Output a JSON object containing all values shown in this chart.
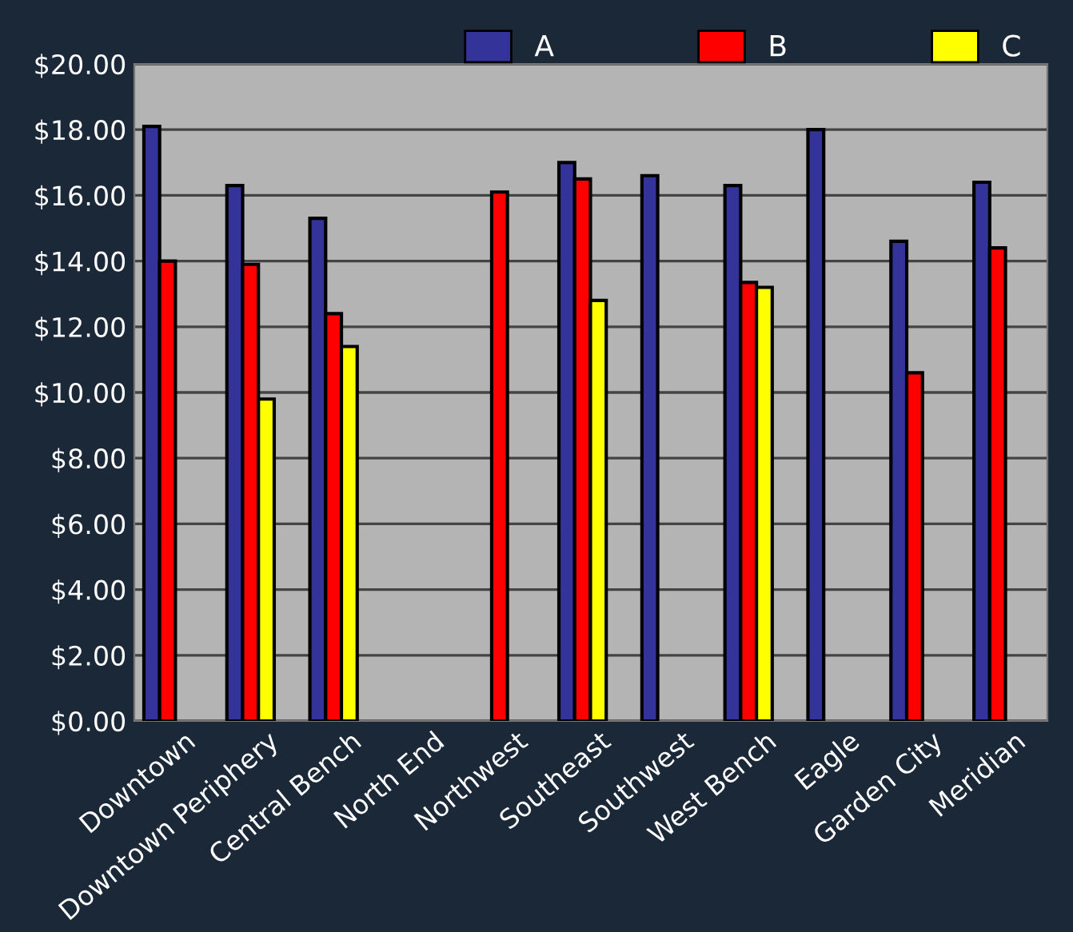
{
  "chart_data": {
    "type": "bar",
    "categories": [
      "Downtown",
      "Downtown Periphery",
      "Central Bench",
      "North End",
      "Northwest",
      "Southeast",
      "Southwest",
      "West Bench",
      "Eagle",
      "Garden City",
      "Meridian"
    ],
    "series": [
      {
        "name": "A",
        "color": "#333399",
        "values": [
          18.1,
          16.3,
          15.3,
          null,
          null,
          17.0,
          16.6,
          16.3,
          18.0,
          14.6,
          16.4
        ]
      },
      {
        "name": "B",
        "color": "#ff0000",
        "values": [
          14.0,
          13.9,
          12.4,
          null,
          16.1,
          16.5,
          null,
          13.35,
          null,
          10.6,
          14.4
        ]
      },
      {
        "name": "C",
        "color": "#ffff00",
        "values": [
          null,
          9.8,
          11.4,
          null,
          null,
          12.8,
          null,
          13.2,
          null,
          null,
          null
        ]
      }
    ],
    "ylim": [
      0,
      20
    ],
    "yticks": [
      {
        "value": 0,
        "label": "$0.00"
      },
      {
        "value": 2,
        "label": "$2.00"
      },
      {
        "value": 4,
        "label": "$4.00"
      },
      {
        "value": 6,
        "label": "$6.00"
      },
      {
        "value": 8,
        "label": "$8.00"
      },
      {
        "value": 10,
        "label": "$10.00"
      },
      {
        "value": 12,
        "label": "$12.00"
      },
      {
        "value": 14,
        "label": "$14.00"
      },
      {
        "value": 16,
        "label": "$16.00"
      },
      {
        "value": 18,
        "label": "$18.00"
      },
      {
        "value": 20,
        "label": "$20.00"
      }
    ],
    "grid": "y",
    "legend": "top right"
  }
}
